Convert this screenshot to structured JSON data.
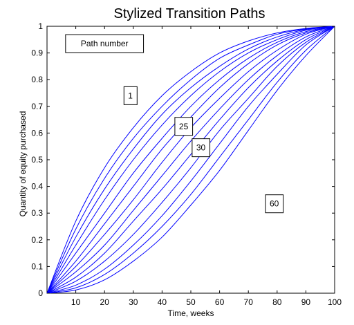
{
  "chart_data": {
    "type": "line",
    "title": "Stylized Transition Paths",
    "xlabel": "Time, weeks",
    "ylabel": "Quantity of equity purchased",
    "xlim": [
      0,
      100
    ],
    "ylim": [
      0,
      1
    ],
    "xticks": [
      10,
      20,
      30,
      40,
      50,
      60,
      70,
      80,
      90,
      100
    ],
    "yticks": [
      0,
      0.1,
      0.2,
      0.3,
      0.4,
      0.5,
      0.6,
      0.7,
      0.8,
      0.9,
      1
    ],
    "x_tick_labels": [
      "10",
      "20",
      "30",
      "40",
      "50",
      "60",
      "70",
      "80",
      "90",
      "100"
    ],
    "y_tick_labels": [
      "0",
      "0.1",
      "0.2",
      "0.3",
      "0.4",
      "0.5",
      "0.6",
      "0.7",
      "0.8",
      "0.9",
      "1"
    ],
    "grid": false,
    "line_color": "#0000ff",
    "x": [
      0,
      10,
      20,
      30,
      40,
      50,
      60,
      70,
      80,
      90,
      100
    ],
    "series": [
      {
        "values": [
          0,
          0.27,
          0.47,
          0.62,
          0.74,
          0.83,
          0.9,
          0.945,
          0.975,
          0.992,
          1
        ]
      },
      {
        "values": [
          0,
          0.24,
          0.43,
          0.58,
          0.7,
          0.8,
          0.88,
          0.93,
          0.97,
          0.99,
          1
        ]
      },
      {
        "values": [
          0,
          0.21,
          0.39,
          0.54,
          0.67,
          0.77,
          0.85,
          0.915,
          0.96,
          0.988,
          1
        ]
      },
      {
        "values": [
          0,
          0.18,
          0.35,
          0.5,
          0.63,
          0.74,
          0.83,
          0.9,
          0.95,
          0.985,
          1
        ]
      },
      {
        "values": [
          0,
          0.15,
          0.3,
          0.45,
          0.58,
          0.7,
          0.8,
          0.88,
          0.94,
          0.98,
          1
        ]
      },
      {
        "values": [
          0,
          0.12,
          0.26,
          0.4,
          0.54,
          0.66,
          0.77,
          0.86,
          0.93,
          0.975,
          1
        ]
      },
      {
        "values": [
          0,
          0.1,
          0.22,
          0.35,
          0.49,
          0.62,
          0.73,
          0.83,
          0.91,
          0.97,
          1
        ]
      },
      {
        "values": [
          0,
          0.08,
          0.18,
          0.31,
          0.44,
          0.57,
          0.69,
          0.8,
          0.89,
          0.96,
          1
        ]
      },
      {
        "values": [
          0,
          0.06,
          0.15,
          0.27,
          0.39,
          0.52,
          0.65,
          0.77,
          0.87,
          0.95,
          1
        ]
      },
      {
        "values": [
          0,
          0.045,
          0.12,
          0.22,
          0.34,
          0.47,
          0.61,
          0.73,
          0.85,
          0.94,
          1
        ]
      },
      {
        "values": [
          0,
          0.03,
          0.09,
          0.18,
          0.29,
          0.42,
          0.56,
          0.7,
          0.82,
          0.93,
          1
        ]
      },
      {
        "values": [
          0,
          0.02,
          0.07,
          0.15,
          0.25,
          0.37,
          0.51,
          0.65,
          0.79,
          0.91,
          1
        ]
      },
      {
        "values": [
          0,
          0.012,
          0.05,
          0.12,
          0.21,
          0.33,
          0.46,
          0.61,
          0.76,
          0.89,
          1
        ]
      }
    ],
    "annotations": [
      {
        "text": "Path number",
        "x": 20,
        "y": 0.935,
        "box": true
      },
      {
        "text": "1",
        "x": 29,
        "y": 0.74,
        "box": true
      },
      {
        "text": "25",
        "x": 47.5,
        "y": 0.625,
        "box": true
      },
      {
        "text": "30",
        "x": 53.5,
        "y": 0.545,
        "box": true
      },
      {
        "text": "60",
        "x": 79,
        "y": 0.335,
        "box": true
      }
    ]
  }
}
